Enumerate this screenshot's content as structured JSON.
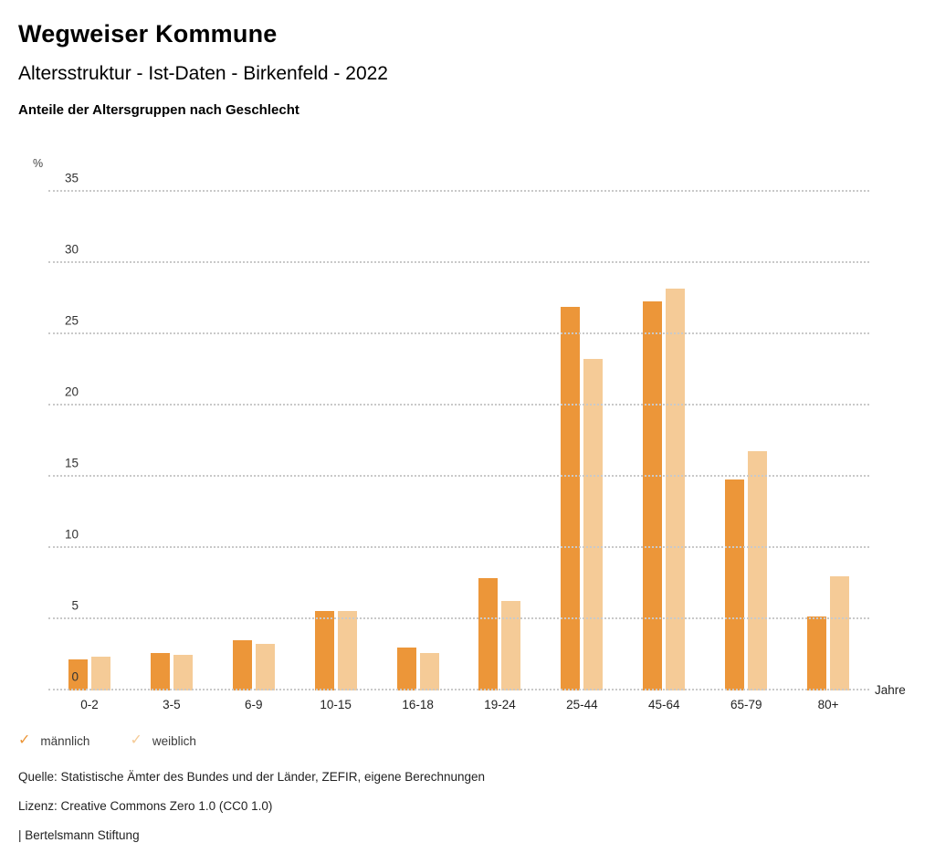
{
  "header": {
    "title": "Wegweiser Kommune",
    "subtitle": "Altersstruktur - Ist-Daten - Birkenfeld - 2022",
    "chart_heading": "Anteile der Altersgruppen nach Geschlecht"
  },
  "chart_data": {
    "type": "bar",
    "title": "Anteile der Altersgruppen nach Geschlecht",
    "unit_label": "%",
    "xlabel": "Jahre",
    "categories": [
      "0-2",
      "3-5",
      "6-9",
      "10-15",
      "16-18",
      "19-24",
      "25-44",
      "45-64",
      "65-79",
      "80+"
    ],
    "series": [
      {
        "name": "männlich",
        "color": "#EC9639",
        "values": [
          2.2,
          2.6,
          3.5,
          5.6,
          3.0,
          7.9,
          26.9,
          27.3,
          14.8,
          5.2
        ]
      },
      {
        "name": "weiblich",
        "color": "#F5CB97",
        "values": [
          2.4,
          2.5,
          3.3,
          5.6,
          2.6,
          6.3,
          23.3,
          28.2,
          16.8,
          8.0
        ]
      }
    ],
    "ylim": [
      0,
      35
    ],
    "ytick_step": 5,
    "grid": "horizontal-dotted",
    "legend_position": "bottom-left"
  },
  "legend": {
    "items": [
      {
        "label": "männlich",
        "color": "#EC9639",
        "icon": "check-icon",
        "glyph": "✓"
      },
      {
        "label": "weiblich",
        "color": "#F5CB97",
        "icon": "check-icon",
        "glyph": "✓"
      }
    ]
  },
  "footer": {
    "source": "Quelle: Statistische Ämter des Bundes und der Länder, ZEFIR, eigene Berechnungen",
    "license": "Lizenz: Creative Commons Zero 1.0 (CC0 1.0)",
    "attribution": "| Bertelsmann Stiftung"
  }
}
